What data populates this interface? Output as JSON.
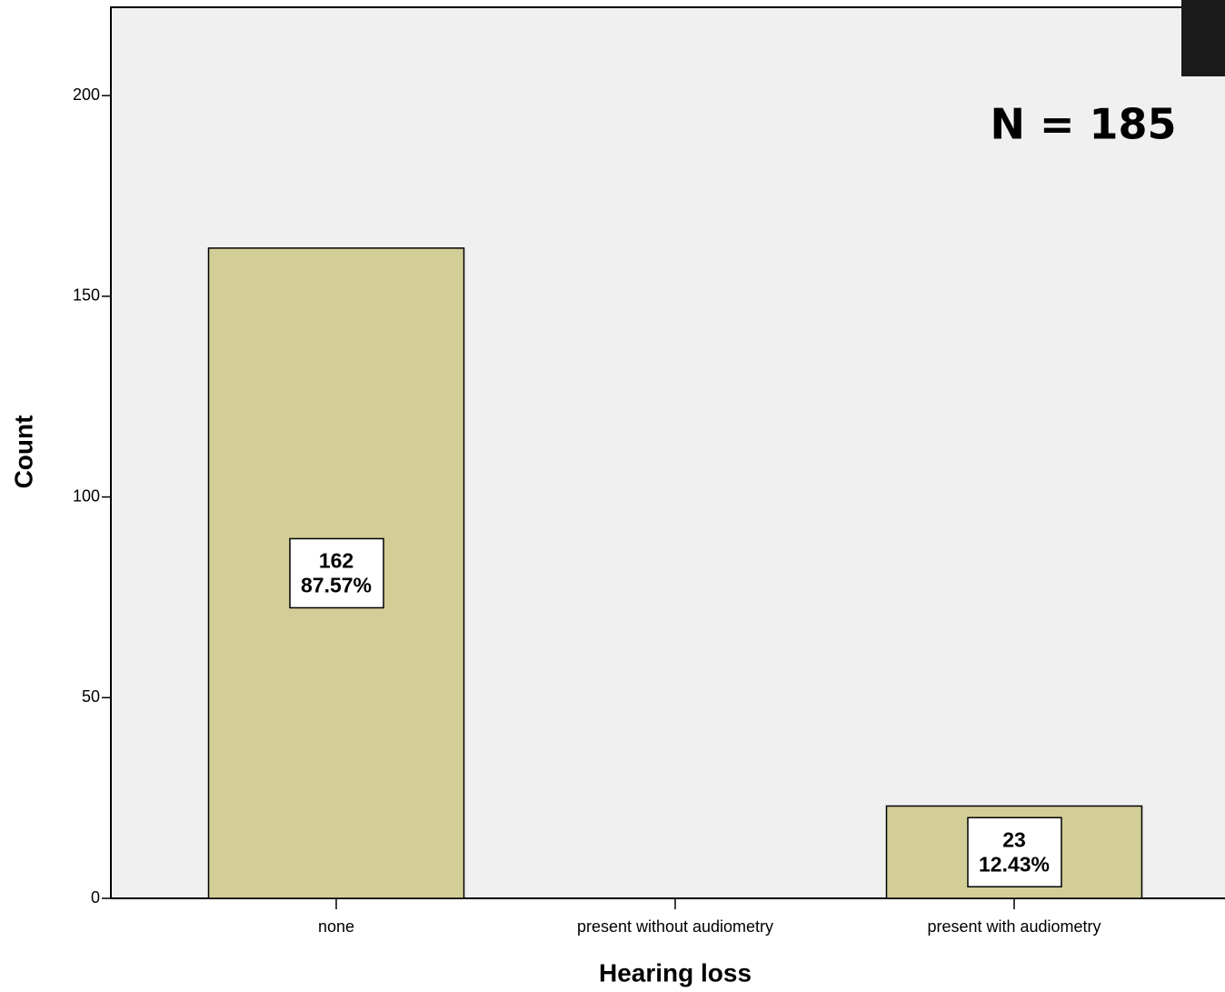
{
  "chart_data": {
    "type": "bar",
    "categories": [
      "none",
      "present without audiometry",
      "present with audiometry"
    ],
    "values": [
      162,
      0,
      23
    ],
    "percent_labels": [
      "87.57%",
      null,
      "12.43%"
    ],
    "color": "#d3ce97",
    "ylim": [
      0,
      222
    ],
    "yticks": [
      0,
      50,
      100,
      150,
      200
    ],
    "x_label": "Hearing loss",
    "y_label": "Count",
    "annotation": "N = 185"
  }
}
